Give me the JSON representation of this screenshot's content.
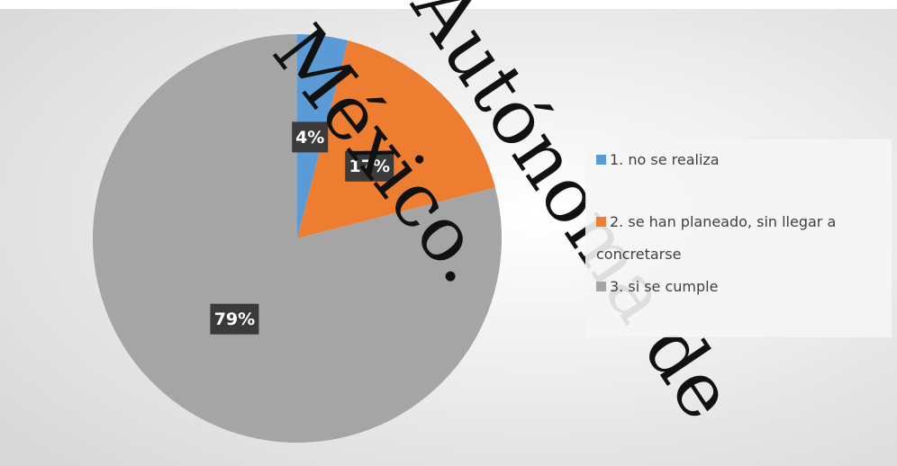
{
  "chart_data": {
    "type": "pie",
    "categories": [
      "1. no se realiza",
      "2. se han planeado, sin llegar a concretarse",
      "3.  si se cumple"
    ],
    "values": [
      4,
      17,
      79
    ],
    "value_labels": [
      "4%",
      "17%",
      "79%"
    ],
    "colors": [
      "#5b9bd5",
      "#ed7d31",
      "#a5a5a5"
    ],
    "legend": "right"
  },
  "watermark": [
    "México.",
    "Autónoma de"
  ]
}
